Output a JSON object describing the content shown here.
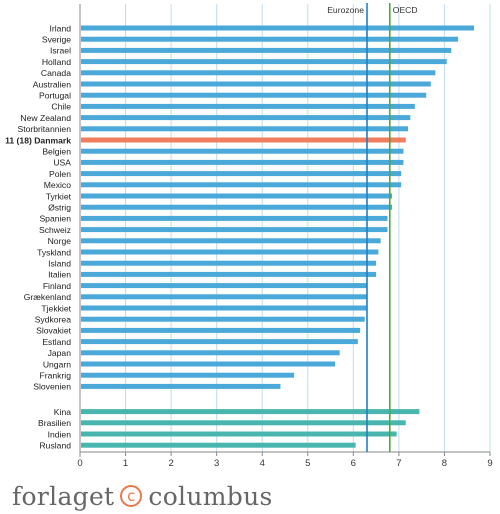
{
  "chart_data": {
    "type": "bar",
    "orientation": "horizontal",
    "categories": [
      "Irland",
      "Sverige",
      "Israel",
      "Holland",
      "Canada",
      "Australien",
      "Portugal",
      "Chile",
      "New Zealand",
      "Storbritannien",
      "11 (18) Danmark",
      "Belgien",
      "USA",
      "Polen",
      "Mexico",
      "Tyrkiet",
      "Østrig",
      "Spanien",
      "Schweiz",
      "Norge",
      "Tyskland",
      "Island",
      "Italien",
      "Finland",
      "Grækenland",
      "Tjekkiet",
      "Sydkorea",
      "Slovakiet",
      "Estland",
      "Japan",
      "Ungarn",
      "Frankrig",
      "Slovenien",
      "Kina",
      "Brasilien",
      "Indien",
      "Rusland"
    ],
    "values": [
      8.65,
      8.3,
      8.15,
      8.05,
      7.8,
      7.7,
      7.6,
      7.35,
      7.25,
      7.2,
      7.15,
      7.1,
      7.1,
      7.05,
      7.05,
      6.85,
      6.85,
      6.75,
      6.75,
      6.6,
      6.55,
      6.5,
      6.5,
      6.3,
      6.3,
      6.3,
      6.25,
      6.15,
      6.1,
      5.7,
      5.6,
      4.7,
      4.4,
      7.45,
      7.15,
      6.95,
      6.05
    ],
    "group_sizes": [
      33,
      4
    ],
    "highlight": "11 (18) Danmark",
    "reference_lines": [
      {
        "label": "Eurozone",
        "value": 6.3,
        "color": "#1f7fc4"
      },
      {
        "label": "OECD",
        "value": 6.8,
        "color": "#4caa3a"
      }
    ],
    "xlim": [
      0,
      9
    ],
    "xticks": [
      "0",
      "1",
      "2",
      "3",
      "4",
      "5",
      "6",
      "7",
      "8",
      "9"
    ],
    "grid": true,
    "colors": {
      "bar": "#4aa9d9",
      "highlight": "#ef7d5e",
      "group2": "#48b6ae",
      "grid": "#bfdcee"
    }
  },
  "logo": {
    "left": "forlaget",
    "mark": "c",
    "right": "columbus"
  }
}
